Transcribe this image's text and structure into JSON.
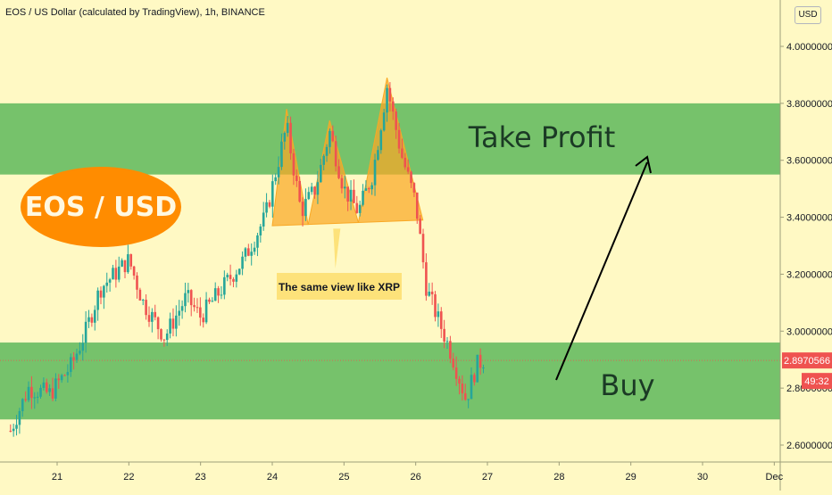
{
  "header": {
    "title": "EOS / US Dollar (calculated by TradingView), 1h, BINANCE",
    "currency_button": "USD"
  },
  "price_axis": {
    "ticks": [
      "4.0000000",
      "3.8000000",
      "3.6000000",
      "3.4000000",
      "3.2000000",
      "3.0000000",
      "2.8000000",
      "2.6000000"
    ],
    "tick_values": [
      4.0,
      3.8,
      3.6,
      3.4,
      3.2,
      3.0,
      2.8,
      2.6
    ],
    "current_price_label": "2.8970566",
    "current_price": 2.8970566,
    "countdown_label": "49:32"
  },
  "time_axis": {
    "ticks": [
      "21",
      "22",
      "23",
      "24",
      "25",
      "26",
      "27",
      "28",
      "29",
      "30",
      "Dec"
    ]
  },
  "annotations": {
    "pair_label": "EOS / USD",
    "take_profit_label": "Take Profit",
    "buy_label": "Buy",
    "callout_text": "The same view like XRP"
  },
  "colors": {
    "background": "#fff9c4",
    "zone_green": "#76c26b",
    "pattern_orange": "#f9a825",
    "bull": "#26a69a",
    "bear": "#ef5350",
    "price_tag": "#ef5350",
    "ellipse": "#ff8c00"
  },
  "chart_data": {
    "type": "candlestick",
    "title": "EOS / US Dollar (calculated by TradingView), 1h, BINANCE",
    "x_axis": [
      "21",
      "22",
      "23",
      "24",
      "25",
      "26",
      "27",
      "28",
      "29",
      "30",
      "Dec"
    ],
    "ylim": [
      2.52,
      4.1
    ],
    "zones": [
      {
        "name": "Take Profit",
        "from": 3.55,
        "to": 3.8
      },
      {
        "name": "Buy",
        "from": 2.69,
        "to": 2.96
      }
    ],
    "closes": [
      {
        "day": 20.35,
        "price": 2.65
      },
      {
        "day": 20.6,
        "price": 2.8
      },
      {
        "day": 20.9,
        "price": 2.78
      },
      {
        "day": 21.2,
        "price": 2.88
      },
      {
        "day": 21.4,
        "price": 3.0
      },
      {
        "day": 21.6,
        "price": 3.15
      },
      {
        "day": 21.8,
        "price": 3.2
      },
      {
        "day": 22.0,
        "price": 3.25
      },
      {
        "day": 22.2,
        "price": 3.1
      },
      {
        "day": 22.5,
        "price": 2.98
      },
      {
        "day": 22.8,
        "price": 3.12
      },
      {
        "day": 23.0,
        "price": 3.05
      },
      {
        "day": 23.3,
        "price": 3.15
      },
      {
        "day": 23.6,
        "price": 3.25
      },
      {
        "day": 23.9,
        "price": 3.4
      },
      {
        "day": 24.2,
        "price": 3.72
      },
      {
        "day": 24.4,
        "price": 3.42
      },
      {
        "day": 24.6,
        "price": 3.5
      },
      {
        "day": 24.8,
        "price": 3.7
      },
      {
        "day": 25.0,
        "price": 3.5
      },
      {
        "day": 25.2,
        "price": 3.42
      },
      {
        "day": 25.4,
        "price": 3.55
      },
      {
        "day": 25.6,
        "price": 3.86
      },
      {
        "day": 25.8,
        "price": 3.62
      },
      {
        "day": 26.0,
        "price": 3.45
      },
      {
        "day": 26.15,
        "price": 3.15
      },
      {
        "day": 26.3,
        "price": 3.05
      },
      {
        "day": 26.5,
        "price": 2.92
      },
      {
        "day": 26.7,
        "price": 2.76
      },
      {
        "day": 26.85,
        "price": 2.88
      },
      {
        "day": 26.95,
        "price": 2.9
      }
    ]
  }
}
